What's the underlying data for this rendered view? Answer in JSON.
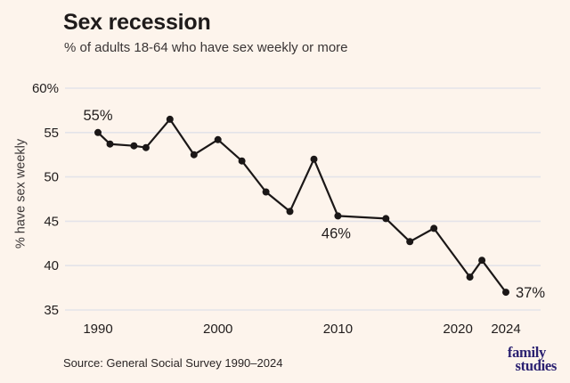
{
  "header": {
    "title": "Sex recession",
    "subtitle": "% of adults 18-64 who have sex weekly or more"
  },
  "chart_data": {
    "type": "line",
    "title": "Sex recession",
    "subtitle": "% of adults 18-64 who have sex weekly or more",
    "xlabel": "",
    "ylabel": "% have sex weekly",
    "xlim": [
      1990,
      2024
    ],
    "ylim": [
      35,
      60
    ],
    "grid": "horizontal",
    "legend": "none",
    "x": [
      1990,
      1991,
      1993,
      1994,
      1996,
      1998,
      2000,
      2002,
      2004,
      2006,
      2008,
      2010,
      2014,
      2016,
      2018,
      2021,
      2022,
      2024
    ],
    "y": [
      55,
      53.7,
      53.5,
      53.3,
      56.5,
      52.5,
      54.2,
      51.8,
      48.3,
      46.1,
      52,
      45.6,
      45.3,
      42.7,
      44.2,
      38.7,
      40.6,
      37
    ],
    "y_ticks": [
      {
        "value": 60,
        "label": "60%"
      },
      {
        "value": 55,
        "label": "55"
      },
      {
        "value": 50,
        "label": "50"
      },
      {
        "value": 45,
        "label": "45"
      },
      {
        "value": 40,
        "label": "40"
      },
      {
        "value": 35,
        "label": "35"
      }
    ],
    "x_ticks": [
      {
        "value": 1990,
        "label": "1990"
      },
      {
        "value": 2000,
        "label": "2000"
      },
      {
        "value": 2010,
        "label": "2010"
      },
      {
        "value": 2020,
        "label": "2020"
      },
      {
        "value": 2024,
        "label": "2024"
      }
    ],
    "annotations": [
      {
        "year": 1990,
        "label": "55%",
        "position": "above"
      },
      {
        "year": 2010,
        "label": "46%",
        "position": "below"
      },
      {
        "year": 2024,
        "label": "37%",
        "position": "right"
      }
    ]
  },
  "footer": {
    "source": "Source: General Social Survey 1990–2024"
  },
  "logo": {
    "line1": "family",
    "line2": "studies",
    "color": "#2b2171"
  },
  "colors": {
    "background": "#fdf4ec",
    "text": "#211d1d",
    "grid": "#e4e3e9",
    "line": "#1b1717"
  }
}
